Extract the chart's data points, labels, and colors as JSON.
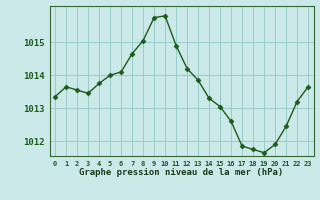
{
  "hours": [
    0,
    1,
    2,
    3,
    4,
    5,
    6,
    7,
    8,
    9,
    10,
    11,
    12,
    13,
    14,
    15,
    16,
    17,
    18,
    19,
    20,
    21,
    22,
    23
  ],
  "pressure": [
    1013.35,
    1013.65,
    1013.55,
    1013.45,
    1013.75,
    1014.0,
    1014.1,
    1014.65,
    1015.05,
    1015.75,
    1015.8,
    1014.9,
    1014.2,
    1013.85,
    1013.3,
    1013.05,
    1012.6,
    1011.85,
    1011.75,
    1011.65,
    1011.9,
    1012.45,
    1013.2,
    1013.65
  ],
  "ylim": [
    1011.55,
    1016.1
  ],
  "yticks": [
    1012,
    1013,
    1014,
    1015
  ],
  "xlabel": "Graphe pression niveau de la mer (hPa)",
  "line_color": "#1a5c1a",
  "marker": "D",
  "marker_size": 2.5,
  "bg_color": "#cce9e9",
  "grid_color": "#99cccc",
  "axis_color": "#336633",
  "bottom_label_color": "#1a3a1a",
  "tick_label_color": "#1a5c1a",
  "linewidth": 1.0
}
